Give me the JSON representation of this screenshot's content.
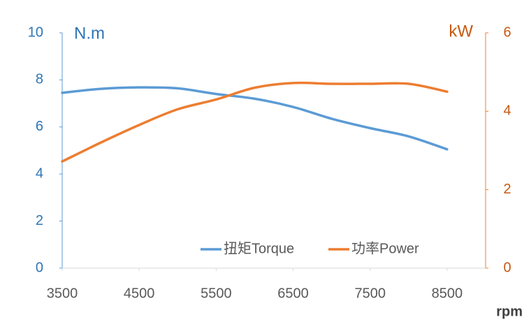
{
  "chart_data": {
    "type": "line",
    "y_label": "N.m",
    "y2_label": "kW",
    "x_label": "rpm",
    "x": [
      3500,
      4000,
      4500,
      5000,
      5500,
      6000,
      6500,
      7000,
      7500,
      8000,
      8500
    ],
    "series": [
      {
        "name": "扭矩Torque",
        "color": "#5b9bd5",
        "values": [
          7.45,
          7.62,
          7.68,
          7.64,
          7.4,
          7.2,
          6.85,
          6.35,
          5.95,
          5.6,
          5.05
        ]
      },
      {
        "name": "功率Power",
        "color": "#ed7d31",
        "axis": "y2",
        "values": [
          2.72,
          3.2,
          3.65,
          4.05,
          4.3,
          4.6,
          4.72,
          4.7,
          4.7,
          4.7,
          4.5
        ]
      }
    ],
    "xlim": [
      3500,
      9000
    ],
    "xticks": [
      3500,
      4500,
      5500,
      6500,
      7500,
      8500
    ],
    "ylim": [
      0,
      10
    ],
    "yticks": [
      0,
      2,
      4,
      6,
      8,
      10
    ],
    "y2lim": [
      0,
      6
    ],
    "y2ticks": [
      0,
      2,
      4,
      6
    ],
    "y_color": "#2e75b6",
    "y2_color": "#c55a11",
    "x_color": "#595959",
    "legend": "bottom-right"
  }
}
